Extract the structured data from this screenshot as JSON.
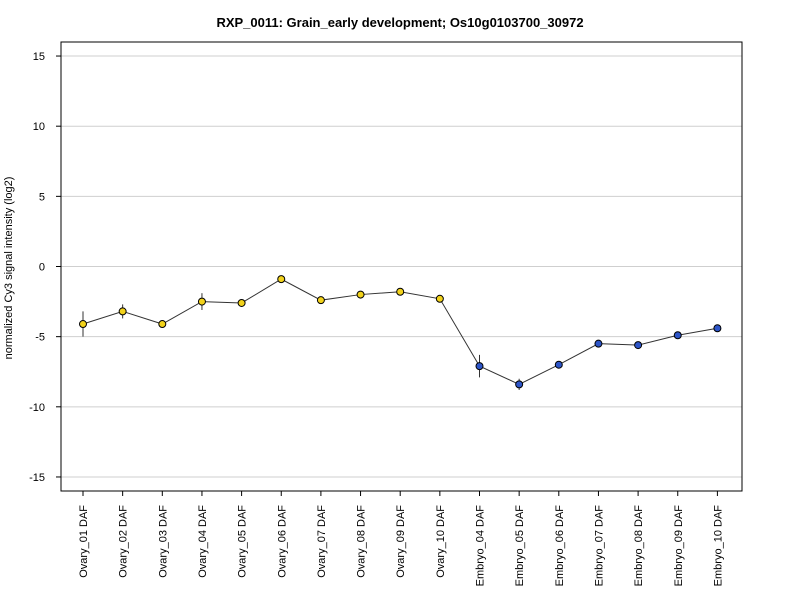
{
  "chart_data": {
    "type": "line",
    "title": "RXP_0011: Grain_early development; Os10g0103700_30972",
    "xlabel": "",
    "ylabel": "normalized Cy3 signal intensity (log2)",
    "ylim": [
      -16,
      16
    ],
    "yticks": [
      15,
      10,
      5,
      0,
      -5,
      -10,
      -15
    ],
    "grid": "horizontal",
    "categories": [
      "Ovary_01 DAF",
      "Ovary_02 DAF",
      "Ovary_03 DAF",
      "Ovary_04 DAF",
      "Ovary_05 DAF",
      "Ovary_06 DAF",
      "Ovary_07 DAF",
      "Ovary_08 DAF",
      "Ovary_09 DAF",
      "Ovary_10 DAF",
      "Embryo_04 DAF",
      "Embryo_05 DAF",
      "Embryo_06 DAF",
      "Embryo_07 DAF",
      "Embryo_08 DAF",
      "Embryo_09 DAF",
      "Embryo_10 DAF"
    ],
    "values": [
      -4.1,
      -3.2,
      -4.1,
      -2.5,
      -2.6,
      -0.9,
      -2.4,
      -2.0,
      -1.8,
      -2.3,
      -7.1,
      -8.4,
      -7.0,
      -5.5,
      -5.6,
      -4.9,
      -4.4
    ],
    "error": [
      0.9,
      0.5,
      0.1,
      0.6,
      0.1,
      0.1,
      0.2,
      0.1,
      0.1,
      0.1,
      0.8,
      0.4,
      0.1,
      0.1,
      0.1,
      0.1,
      0.1
    ],
    "point_colors": [
      "#f2d21b",
      "#f2d21b",
      "#f2d21b",
      "#f2d21b",
      "#f2d21b",
      "#f2d21b",
      "#f2d21b",
      "#f2d21b",
      "#f2d21b",
      "#f2d21b",
      "#2d55c8",
      "#2d55c8",
      "#2d55c8",
      "#2d55c8",
      "#2d55c8",
      "#2d55c8",
      "#2d55c8"
    ]
  }
}
